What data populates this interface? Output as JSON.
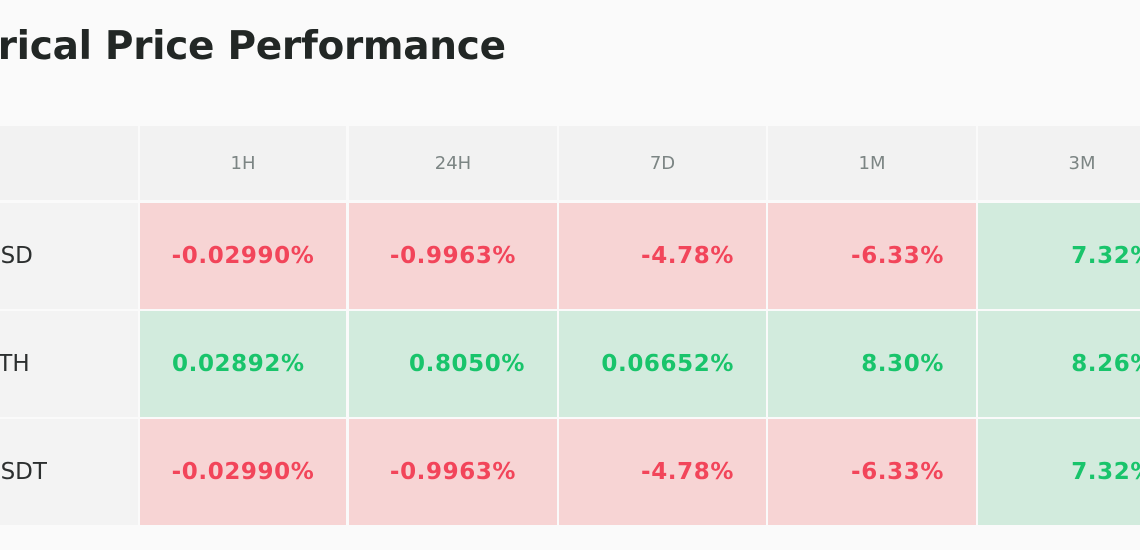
{
  "title": "storical Price Performance",
  "columns": [
    "1H",
    "24H",
    "7D",
    "1M",
    "3M"
  ],
  "rows": [
    {
      "label": "/USD",
      "values": [
        "-0.02990%",
        "-0.9963%",
        "-4.78%",
        "-6.33%",
        "7.32%"
      ],
      "signs": [
        "neg",
        "neg",
        "neg",
        "neg",
        "pos"
      ]
    },
    {
      "label": "/ETH",
      "values": [
        "0.02892%",
        "0.8050%",
        "0.06652%",
        "8.30%",
        "8.26%"
      ],
      "signs": [
        "pos",
        "pos",
        "pos",
        "pos",
        "pos"
      ]
    },
    {
      "label": "/USDT",
      "values": [
        "-0.02990%",
        "-0.9963%",
        "-4.78%",
        "-6.33%",
        "7.32%"
      ],
      "signs": [
        "neg",
        "neg",
        "neg",
        "neg",
        "pos"
      ]
    }
  ],
  "colors": {
    "negative_text": "#f2455a",
    "negative_bg": "#f7d4d4",
    "positive_text": "#19c46b",
    "positive_bg": "#d2ebdd"
  }
}
